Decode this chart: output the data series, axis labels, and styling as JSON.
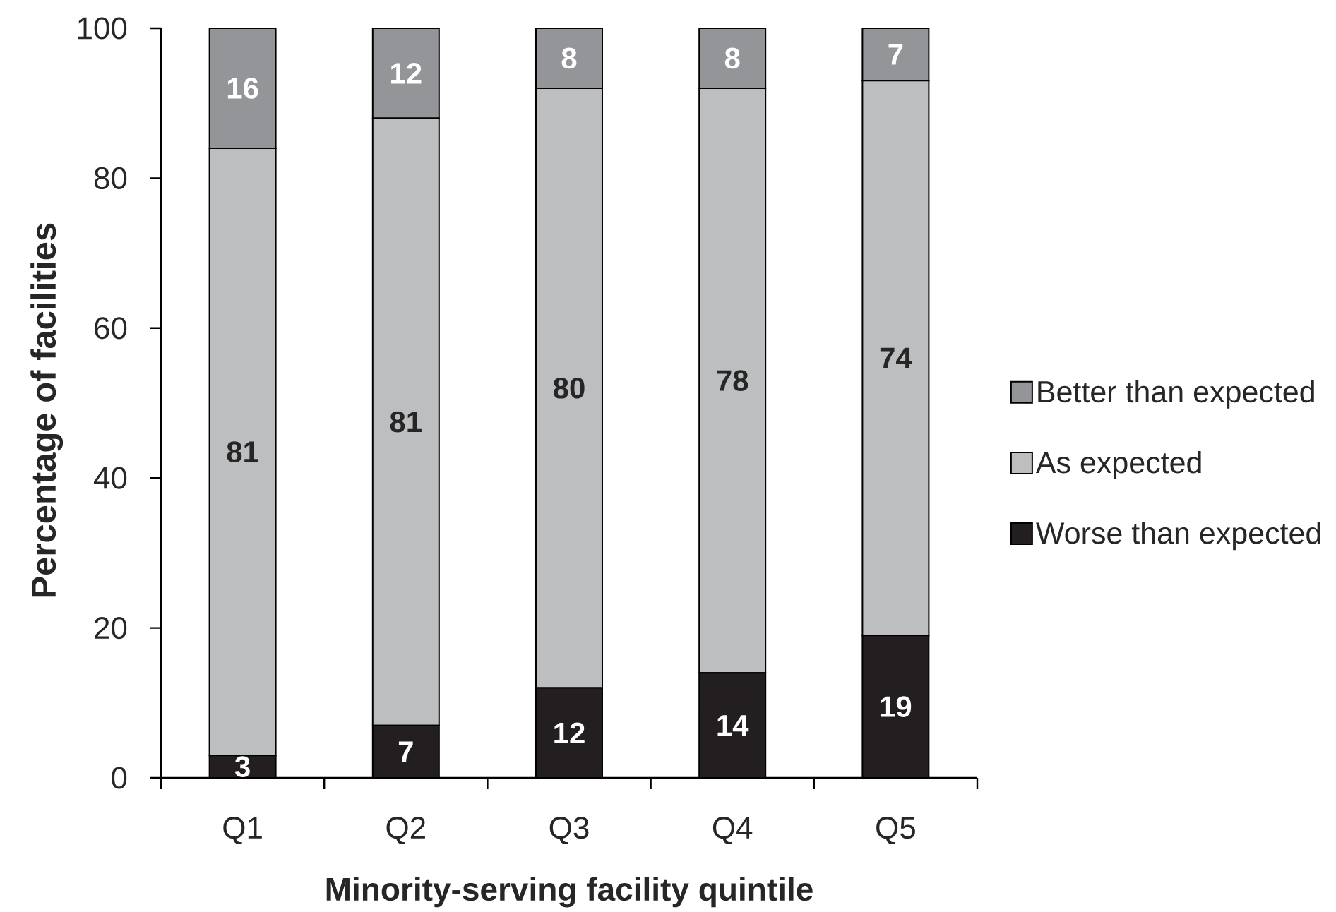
{
  "chart_data": {
    "type": "bar",
    "stacked": true,
    "xlabel": "Minority-serving facility quintile",
    "ylabel": "Percentage of facilities",
    "categories": [
      "Q1",
      "Q2",
      "Q3",
      "Q4",
      "Q5"
    ],
    "series": [
      {
        "name": "Worse than expected",
        "color": "#231f20",
        "values": [
          3,
          7,
          12,
          14,
          19
        ]
      },
      {
        "name": "As expected",
        "color": "#bcbec0",
        "values": [
          81,
          81,
          80,
          78,
          74
        ]
      },
      {
        "name": "Better than expected",
        "color": "#939598",
        "values": [
          16,
          12,
          8,
          8,
          7
        ]
      }
    ],
    "ylim": [
      0,
      100
    ],
    "yticks": [
      0,
      20,
      40,
      60,
      80,
      100
    ],
    "data_labels": true,
    "legend": "right"
  }
}
